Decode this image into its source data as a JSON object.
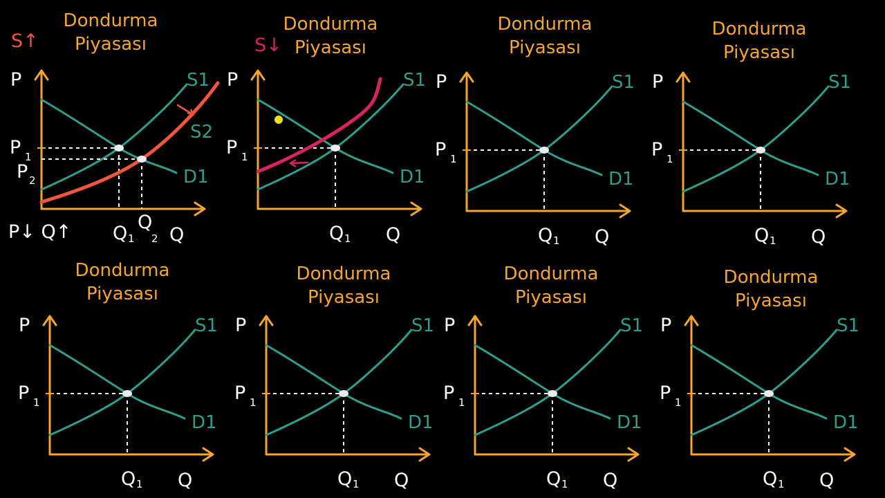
{
  "colors": {
    "background": "#000000",
    "axis": "#f5a531",
    "supply": "#2e9e8f",
    "demand": "#2e9e8f",
    "title": "#f5a531",
    "text": "#ffffff",
    "shift_up": "#f2553d",
    "shift_down": "#d6245d",
    "cursor": "#e8e01c"
  },
  "panels": [
    {
      "id": "p1",
      "title_line1": "Dondurma",
      "title_line2": "Piyasası",
      "y_axis": "P",
      "x_axis": "Q",
      "price_label": "P",
      "price_sub": "1",
      "qty_label": "Q",
      "qty_sub": "1",
      "supply_label": "S1",
      "demand_label": "D1",
      "note": "S↑",
      "new_supply_label": "S2",
      "new_price_label": "P",
      "new_price_sub": "2",
      "new_qty_label": "Q",
      "new_qty_sub": "2",
      "result": "P↓ Q↑"
    },
    {
      "id": "p2",
      "title_line1": "Dondurma",
      "title_line2": "Piyasası",
      "y_axis": "P",
      "x_axis": "Q",
      "price_label": "P",
      "price_sub": "1",
      "qty_label": "Q",
      "qty_sub": "1",
      "supply_label": "S1",
      "demand_label": "D1",
      "note": "S↓"
    },
    {
      "id": "p3",
      "title_line1": "Dondurma",
      "title_line2": "Piyasası",
      "y_axis": "P",
      "x_axis": "Q",
      "price_label": "P",
      "price_sub": "1",
      "qty_label": "Q",
      "qty_sub": "1",
      "supply_label": "S1",
      "demand_label": "D1"
    },
    {
      "id": "p4",
      "title_line1": "Dondurma",
      "title_line2": "Piyasası",
      "y_axis": "P",
      "x_axis": "Q",
      "price_label": "P",
      "price_sub": "1",
      "qty_label": "Q",
      "qty_sub": "1",
      "supply_label": "S1",
      "demand_label": "D1"
    },
    {
      "id": "p5",
      "title_line1": "Dondurma",
      "title_line2": "Piyasası",
      "y_axis": "P",
      "x_axis": "Q",
      "price_label": "P",
      "price_sub": "1",
      "qty_label": "Q",
      "qty_sub": "1",
      "supply_label": "S1",
      "demand_label": "D1"
    },
    {
      "id": "p6",
      "title_line1": "Dondurma",
      "title_line2": "Piyasası",
      "y_axis": "P",
      "x_axis": "Q",
      "price_label": "P",
      "price_sub": "1",
      "qty_label": "Q",
      "qty_sub": "1",
      "supply_label": "S1",
      "demand_label": "D1"
    },
    {
      "id": "p7",
      "title_line1": "Dondurma",
      "title_line2": "Piyasası",
      "y_axis": "P",
      "x_axis": "Q",
      "price_label": "P",
      "price_sub": "1",
      "qty_label": "Q",
      "qty_sub": "1",
      "supply_label": "S1",
      "demand_label": "D1"
    },
    {
      "id": "p8",
      "title_line1": "Dondurma",
      "title_line2": "Piyasası",
      "y_axis": "P",
      "x_axis": "Q",
      "price_label": "P",
      "price_sub": "1",
      "qty_label": "Q",
      "qty_sub": "1",
      "supply_label": "S1",
      "demand_label": "D1"
    }
  ]
}
